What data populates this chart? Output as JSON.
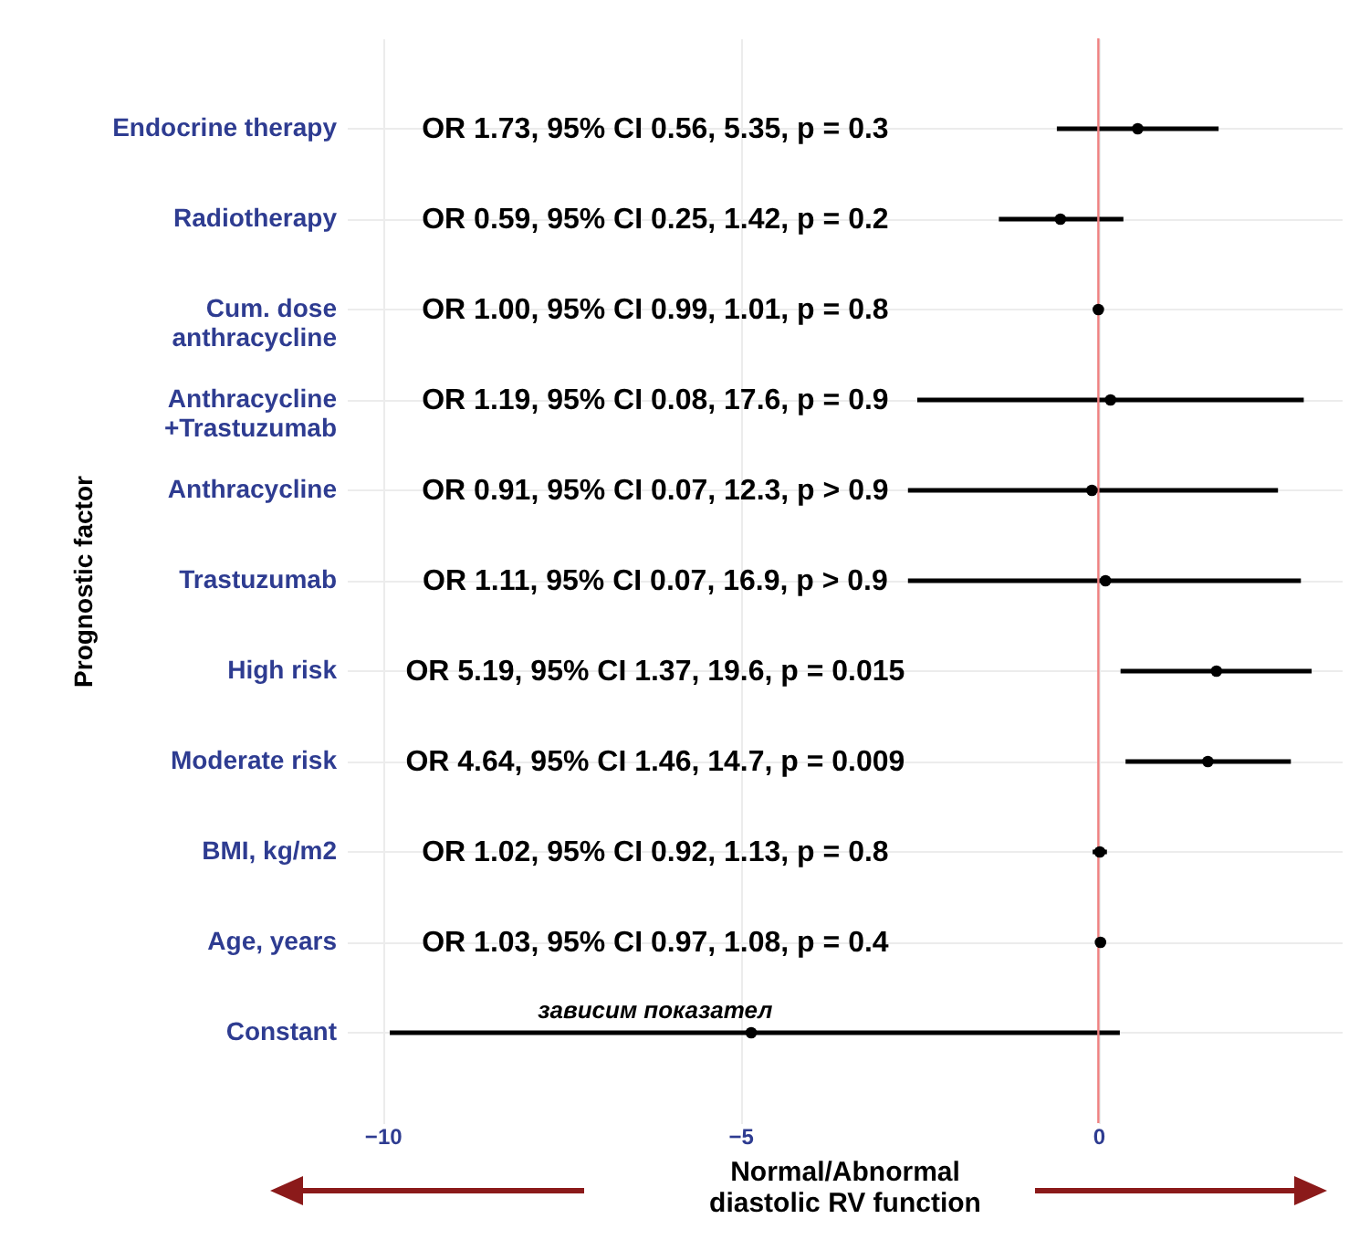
{
  "chart_data": {
    "type": "scatter",
    "orientation": "horizontal",
    "ylabel": "Prognostic factor",
    "xlabel": "Normal/Abnormal\ndiastolic RV function",
    "categories": [
      "Endocrine therapy",
      "Radiotherapy",
      "Cum. dose\nanthracycline",
      "Anthracycline\n+Trastuzumab",
      "Anthracycline",
      "Trastuzumab",
      "High risk",
      "Moderate risk",
      "BMI, kg/m2",
      "Age, years",
      "Constant"
    ],
    "values": [
      0.55,
      -0.53,
      0,
      0.17,
      -0.09,
      0.1,
      1.65,
      1.53,
      0.02,
      0.03,
      -4.85
    ],
    "errors": [
      [
        -0.58,
        1.68
      ],
      [
        -1.39,
        0.35
      ],
      [
        -0.01,
        0.01
      ],
      [
        -2.53,
        2.87
      ],
      [
        -2.66,
        2.51
      ],
      [
        -2.66,
        2.83
      ],
      [
        0.31,
        2.98
      ],
      [
        0.38,
        2.69
      ],
      [
        -0.08,
        0.12
      ],
      [
        -0.03,
        0.08
      ],
      [
        -9.9,
        0.3
      ]
    ],
    "color": "#000000",
    "xlim": [
      -10.5,
      3.4
    ],
    "xticks": [
      -10,
      -5,
      0
    ],
    "grid": true,
    "marker": "circle",
    "ref_lines": [
      {
        "axis": "x",
        "value": 0,
        "color": "#f08080"
      }
    ],
    "annotations": [
      "OR 1.73, 95% CI 0.56, 5.35,  p = 0.3",
      "OR 0.59, 95% CI 0.25, 1.42,  p = 0.2",
      "OR 1.00, 95% CI 0.99, 1.01,  p = 0.8",
      "OR 1.19, 95% CI 0.08, 17.6,  p = 0.9",
      "OR 0.91, 95% CI 0.07, 12.3,  p > 0.9",
      "OR 1.11, 95% CI 0.07, 16.9,  p > 0.9",
      "OR 5.19, 95% CI 1.37, 19.6, p = 0.015",
      "OR 4.64, 95% CI 1.46, 14.7, p = 0.009",
      "OR 1.02, 95% CI 0.92, 1.13,  p = 0.8",
      "OR 1.03, 95% CI 0.97, 1.08,  p = 0.4",
      "зависим показател"
    ]
  }
}
